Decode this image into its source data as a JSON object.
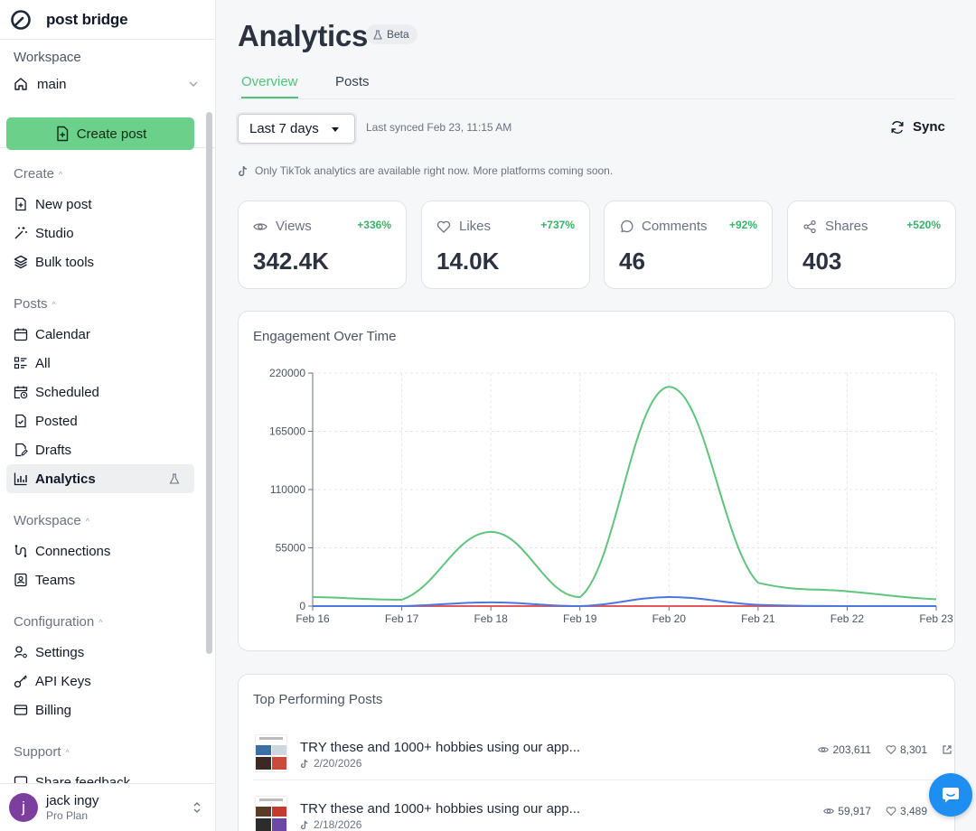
{
  "brand": {
    "name": "post bridge"
  },
  "workspace": {
    "label": "Workspace",
    "current": "main"
  },
  "sidebar": {
    "create_button": "Create post",
    "sections": {
      "create": "Create",
      "posts": "Posts",
      "workspace": "Workspace",
      "configuration": "Configuration",
      "support": "Support"
    },
    "create_items": [
      "New post",
      "Studio",
      "Bulk tools"
    ],
    "posts_items": [
      "Calendar",
      "All",
      "Scheduled",
      "Posted",
      "Drafts",
      "Analytics"
    ],
    "workspace_items": [
      "Connections",
      "Teams"
    ],
    "config_items": [
      "Settings",
      "API Keys",
      "Billing"
    ],
    "support_items": [
      "Share feedback"
    ],
    "active_item": "Analytics"
  },
  "user": {
    "avatar_letter": "j",
    "name": "jack ingy",
    "plan": "Pro Plan"
  },
  "page": {
    "title": "Analytics",
    "badge": "Beta",
    "tabs": [
      "Overview",
      "Posts"
    ],
    "active_tab": "Overview",
    "range": "Last 7 days",
    "synced": "Last synced Feb 23, 11:15 AM",
    "sync_label": "Sync",
    "notice": "Only TikTok analytics are available right now. More platforms coming soon."
  },
  "stats": [
    {
      "label": "Views",
      "change": "+336%",
      "value": "342.4K",
      "icon": "eye-icon"
    },
    {
      "label": "Likes",
      "change": "+737%",
      "value": "14.0K",
      "icon": "heart-icon"
    },
    {
      "label": "Comments",
      "change": "+92%",
      "value": "46",
      "icon": "comment-icon"
    },
    {
      "label": "Shares",
      "change": "+520%",
      "value": "403",
      "icon": "share-icon"
    }
  ],
  "engagement": {
    "title": "Engagement Over Time"
  },
  "chart_data": {
    "type": "line",
    "title": "Engagement Over Time",
    "xlabel": "",
    "ylabel": "",
    "categories": [
      "Feb 16",
      "Feb 17",
      "Feb 18",
      "Feb 19",
      "Feb 20",
      "Feb 21",
      "Feb 22",
      "Feb 23"
    ],
    "y_ticks": [
      0,
      55000,
      110000,
      165000,
      220000
    ],
    "ylim": [
      0,
      220000
    ],
    "grid": true,
    "colors": [
      "#5fc47e",
      "#4a78e0",
      "#e2585b"
    ],
    "series": [
      {
        "values": [
          8500,
          6000,
          70000,
          8500,
          207000,
          22000,
          14000,
          6500
        ]
      },
      {
        "values": [
          0,
          0,
          3500,
          0,
          8500,
          1200,
          0,
          0
        ]
      },
      {
        "values": [
          0,
          0,
          0,
          0,
          0,
          0,
          0,
          0
        ]
      }
    ]
  },
  "top_posts": {
    "title": "Top Performing Posts",
    "items": [
      {
        "title": "TRY these and 1000+ hobbies using our app...",
        "date": "2/20/2026",
        "views": "203,611",
        "likes": "8,301"
      },
      {
        "title": "TRY these and 1000+ hobbies using our app...",
        "date": "2/18/2026",
        "views": "59,917",
        "likes": "3,489"
      }
    ]
  }
}
